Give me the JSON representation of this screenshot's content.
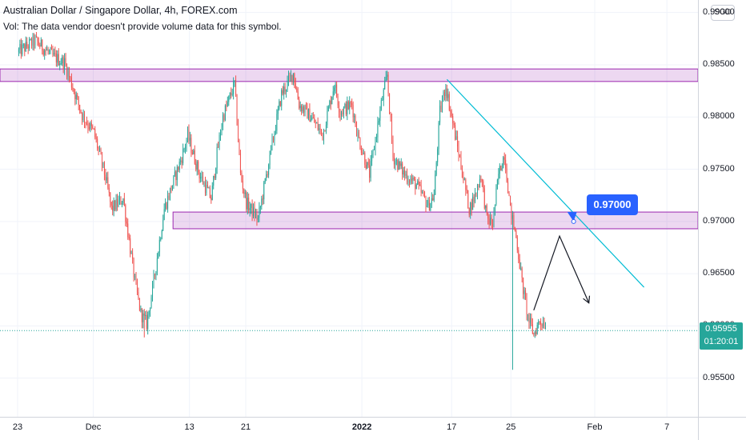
{
  "header": {
    "symbol_title": "Australian Dollar / Singapore Dollar, 4h, FOREX.com",
    "volume_note": "Vol: The data vendor doesn't provide volume data for this symbol.",
    "currency": "SGD"
  },
  "price_tag": {
    "price": "0.95955",
    "countdown": "01:20:01"
  },
  "callout": {
    "label": "0.97000"
  },
  "chart_data": {
    "type": "candlestick",
    "symbol": "AUD/SGD",
    "interval": "4h",
    "y_tick_labels": [
      "0.99000",
      "0.98500",
      "0.98000",
      "0.97500",
      "0.97000",
      "0.96500",
      "0.96000",
      "0.95500"
    ],
    "y_ticks": [
      0.99,
      0.985,
      0.98,
      0.975,
      0.97,
      0.965,
      0.96,
      0.955
    ],
    "ylim": [
      0.9513,
      0.9912
    ],
    "x_tick_labels": [
      "23",
      "Dec",
      "13",
      "21",
      "2022",
      "17",
      "25",
      "Feb",
      "7"
    ],
    "x_tick_positions": [
      0.0,
      12.9,
      29.3,
      38.9,
      58.7,
      74.0,
      84.1,
      98.4,
      110.7
    ],
    "xlim": [
      -3.0,
      116.0
    ],
    "current_price": 0.95955,
    "candle_colors": {
      "up": "#26a69a",
      "down": "#ef5350"
    },
    "zone_color": "#9c27b0",
    "trendline_color": "#00bcd4",
    "anchors": [
      [
        0,
        0.9862
      ],
      [
        3,
        0.9873
      ],
      [
        6,
        0.9858
      ],
      [
        8,
        0.9852
      ],
      [
        11,
        0.9802
      ],
      [
        13,
        0.9785
      ],
      [
        15,
        0.9742
      ],
      [
        16,
        0.9712
      ],
      [
        18,
        0.9722
      ],
      [
        19,
        0.9682
      ],
      [
        20,
        0.9642
      ],
      [
        21,
        0.9612
      ],
      [
        22,
        0.9602
      ],
      [
        23,
        0.9635
      ],
      [
        25,
        0.9712
      ],
      [
        28,
        0.9762
      ],
      [
        29,
        0.9782
      ],
      [
        31,
        0.9745
      ],
      [
        33,
        0.9722
      ],
      [
        34,
        0.9765
      ],
      [
        35,
        0.98
      ],
      [
        37,
        0.9832
      ],
      [
        38,
        0.9745
      ],
      [
        39,
        0.9718
      ],
      [
        41,
        0.9702
      ],
      [
        43,
        0.9762
      ],
      [
        45,
        0.9822
      ],
      [
        47,
        0.9842
      ],
      [
        48,
        0.9812
      ],
      [
        50,
        0.98
      ],
      [
        52,
        0.9783
      ],
      [
        54,
        0.9832
      ],
      [
        55,
        0.9805
      ],
      [
        57,
        0.9812
      ],
      [
        58,
        0.9782
      ],
      [
        60,
        0.9745
      ],
      [
        62,
        0.9812
      ],
      [
        63,
        0.984
      ],
      [
        64,
        0.9762
      ],
      [
        66,
        0.9745
      ],
      [
        68,
        0.9735
      ],
      [
        70,
        0.9715
      ],
      [
        71,
        0.9725
      ],
      [
        72,
        0.9805
      ],
      [
        73,
        0.983
      ],
      [
        74,
        0.98
      ],
      [
        76,
        0.9742
      ],
      [
        77,
        0.9712
      ],
      [
        78,
        0.9725
      ],
      [
        79,
        0.9745
      ],
      [
        80,
        0.9702
      ],
      [
        81,
        0.9698
      ],
      [
        82,
        0.9745
      ],
      [
        83,
        0.9765
      ],
      [
        84,
        0.9712
      ],
      [
        85,
        0.9685
      ],
      [
        86,
        0.9642
      ],
      [
        87,
        0.9608
      ],
      [
        88,
        0.9592
      ],
      [
        89,
        0.9605
      ],
      [
        90,
        0.9602
      ]
    ],
    "lows": [
      {
        "x": 21.7,
        "y": 0.9589
      },
      {
        "x": 84.5,
        "y": 0.9558
      }
    ],
    "resistance_zone": {
      "x": [
        -3.0,
        116.0
      ],
      "y": [
        0.9834,
        0.9846
      ]
    },
    "support_zone": {
      "x": [
        26.5,
        116.0
      ],
      "y": [
        0.9693,
        0.9709
      ]
    },
    "trendline": {
      "x1": 73.2,
      "y1": 0.9836,
      "x2": 106.8,
      "y2": 0.9637
    },
    "projection_path": [
      [
        88.0,
        0.9615
      ],
      [
        92.4,
        0.9686
      ],
      [
        97.4,
        0.9622
      ]
    ],
    "callout_point": {
      "x": 94.8,
      "y": 0.97
    }
  }
}
